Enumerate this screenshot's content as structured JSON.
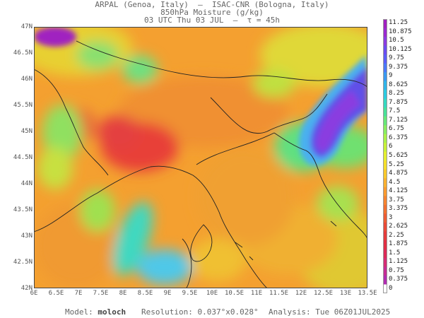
{
  "header": {
    "line1": "ARPAL (Genoa, Italy)  –  ISAC-CNR (Bologna, Italy)",
    "line2": "850hPa Moisture (g/kg)",
    "line3": "03 UTC Thu 03 JUL  –  τ = 45h"
  },
  "axes": {
    "lat_labels": [
      "47N",
      "46.5N",
      "46N",
      "45.5N",
      "45N",
      "44.5N",
      "44N",
      "43.5N",
      "43N",
      "42.5N",
      "42N"
    ],
    "lon_labels": [
      "6E",
      "6.5E",
      "7E",
      "7.5E",
      "8E",
      "8.5E",
      "9E",
      "9.5E",
      "10E",
      "10.5E",
      "11E",
      "11.5E",
      "12E",
      "12.5E",
      "13E",
      "13.5E"
    ],
    "lat_range": [
      42,
      47
    ],
    "lon_range": [
      6,
      13.5
    ]
  },
  "colorbar": {
    "labels": [
      "11.25",
      "10.875",
      "10.5",
      "10.125",
      "9.75",
      "9.375",
      "9",
      "8.625",
      "8.25",
      "7.875",
      "7.5",
      "7.125",
      "6.75",
      "6.375",
      "6",
      "5.625",
      "5.25",
      "4.875",
      "4.5",
      "4.125",
      "3.75",
      "3.375",
      "3",
      "2.625",
      "2.25",
      "1.875",
      "1.5",
      "1.125",
      "0.75",
      "0.375",
      "0"
    ],
    "colors": [
      "#a020c0",
      "#9a2ad0",
      "#8a3ce0",
      "#6a4cf0",
      "#5a5cf8",
      "#4a78f8",
      "#3a98f0",
      "#30b4e8",
      "#2ccae0",
      "#36d8c0",
      "#48e098",
      "#66e678",
      "#88ec60",
      "#aaf048",
      "#c8f038",
      "#e4ee30",
      "#f4de2c",
      "#f8c82c",
      "#f8b030",
      "#f89a30",
      "#f48430",
      "#f07030",
      "#ec5c34",
      "#e84a38",
      "#e43c3c",
      "#e02e44",
      "#dc2a58",
      "#d42c74",
      "#c42c94",
      "#b02cb0",
      "#ffffff"
    ]
  },
  "footer": {
    "model_label": "Model:",
    "model_value": "moloch",
    "resolution": "Resolution: 0.037°x0.028°",
    "analysis": "Analysis: Tue 06Z01JUL2025"
  }
}
